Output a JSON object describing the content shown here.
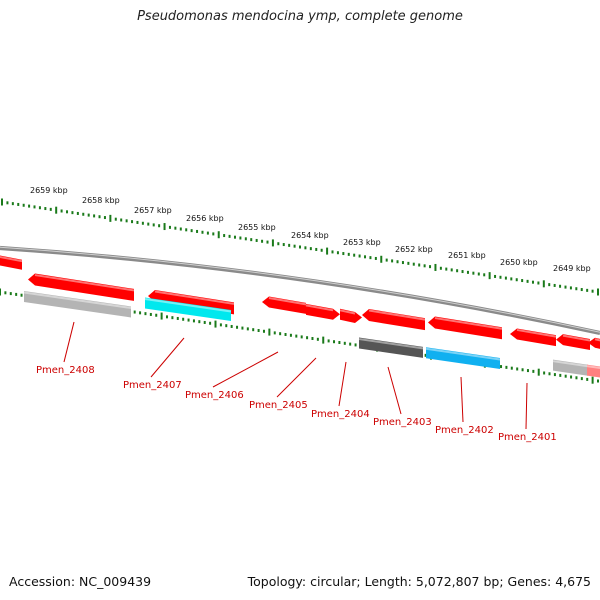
{
  "title": "Pseudomonas mendocina ymp, complete genome",
  "footer": {
    "accession": "Accession: NC_009439",
    "topology": "Topology: circular; Length: 5,072,807 bp; Genes: 4,675"
  },
  "colors": {
    "cds": "#ff0000",
    "gray_feature": "#b4b4b4",
    "dark_feature": "#555555",
    "cyan_feature": "#00e8ee",
    "blue_feature": "#10b0f0",
    "backbone": "#8a8a8a",
    "ticks": "#1a7a1a",
    "labels": "#cc0000"
  },
  "kbp_labels": [
    "2659 kbp",
    "2658 kbp",
    "2657 kbp",
    "2656 kbp",
    "2655 kbp",
    "2654 kbp",
    "2653 kbp",
    "2652 kbp",
    "2651 kbp",
    "2650 kbp",
    "2649 kbp"
  ],
  "gene_labels": [
    "Pmen_2408",
    "Pmen_2407",
    "Pmen_2406",
    "Pmen_2405",
    "Pmen_2404",
    "Pmen_2403",
    "Pmen_2402",
    "Pmen_2401"
  ]
}
